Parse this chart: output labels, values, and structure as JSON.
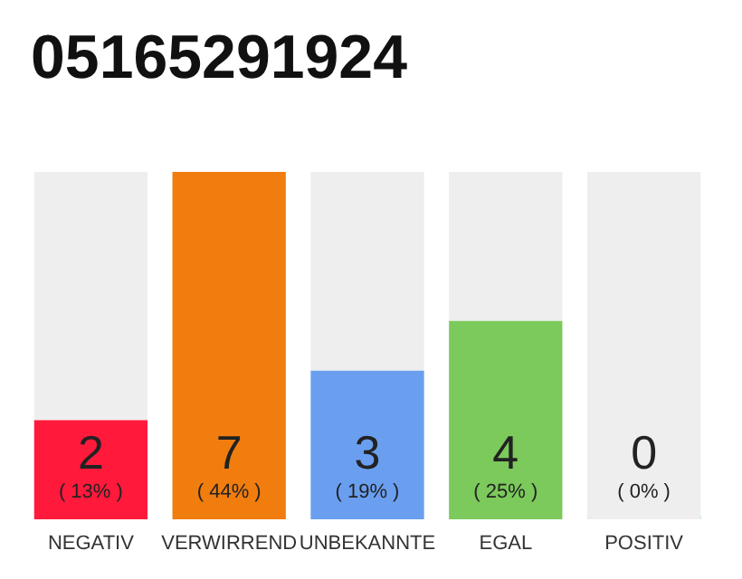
{
  "chart_data": {
    "type": "bar",
    "title": "05165291924",
    "stacked": true,
    "categories": [
      "NEGATIV",
      "VERWIRREND",
      "UNBEKANNTE",
      "EGAL",
      "POSITIV"
    ],
    "series": [
      {
        "colors": [
          "#ff1a3c",
          "#f07d0d",
          "#6a9ff0",
          "#7cc95c",
          "#22a84a"
        ],
        "values": [
          2,
          7,
          3,
          4,
          0
        ],
        "value_labels": [
          "2\n( 13% )",
          "7\n( 44% )",
          "3\n( 19% )",
          "4\n( 25% )",
          "0\n( 0% )"
        ]
      },
      {
        "color": "#eeeeee",
        "values": [
          5,
          0,
          4,
          3,
          7
        ]
      }
    ],
    "tick_labels": "x",
    "grid": false
  }
}
